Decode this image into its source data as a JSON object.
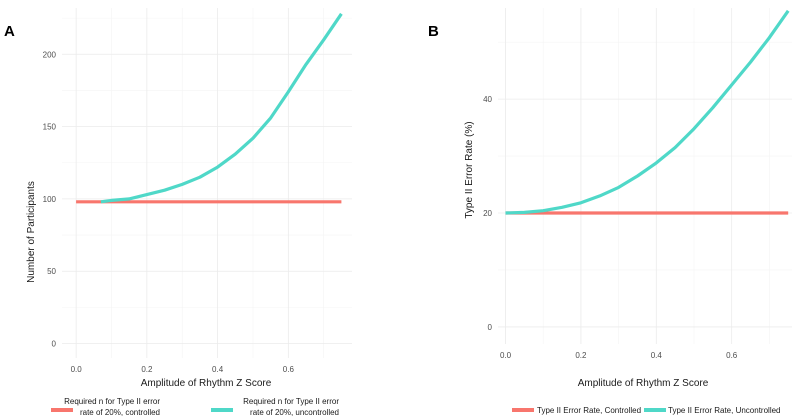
{
  "chart_data": [
    {
      "panel": "A",
      "type": "line",
      "xlabel": "Amplitude of Rhythm  Z Score",
      "ylabel": "Number of Participants",
      "xlim": [
        -0.04,
        0.78
      ],
      "ylim": [
        -10,
        232
      ],
      "x_ticks": [
        0.0,
        0.2,
        0.4,
        0.6
      ],
      "x_tick_labels": [
        "0.0",
        "0.2",
        "0.4",
        "0.6"
      ],
      "y_ticks": [
        0,
        50,
        100,
        150,
        200
      ],
      "y_tick_labels": [
        "0",
        "50",
        "100",
        "150",
        "200"
      ],
      "series": [
        {
          "name": "controlled",
          "color": "#F8766D",
          "x": [
            0.0,
            0.75
          ],
          "y": [
            98,
            98
          ]
        },
        {
          "name": "uncontrolled",
          "color": "#4FD8C8",
          "x": [
            0.07,
            0.1,
            0.15,
            0.2,
            0.25,
            0.3,
            0.35,
            0.4,
            0.45,
            0.5,
            0.55,
            0.6,
            0.65,
            0.7,
            0.75
          ],
          "y": [
            98,
            99,
            100,
            103,
            106,
            110,
            115,
            122,
            131,
            142,
            156,
            174,
            193,
            210,
            228
          ]
        }
      ],
      "legend": [
        {
          "label_line1": "Required n for Type II error",
          "label_line2": "rate of 20%, controlled",
          "color": "#F8766D"
        },
        {
          "label_line1": "Required n for Type II error",
          "label_line2": "rate of 20%, uncontrolled",
          "color": "#4FD8C8"
        }
      ]
    },
    {
      "panel": "B",
      "type": "line",
      "xlabel": "Amplitude of Rhythm  Z Score",
      "ylabel": "Type II Error Rate (%)",
      "xlim": [
        -0.02,
        0.76
      ],
      "ylim": [
        -3,
        56
      ],
      "x_ticks": [
        0.0,
        0.2,
        0.4,
        0.6
      ],
      "x_tick_labels": [
        "0.0",
        "0.2",
        "0.4",
        "0.6"
      ],
      "y_ticks": [
        0,
        20,
        40
      ],
      "y_tick_labels": [
        "0",
        "20",
        "40"
      ],
      "series": [
        {
          "name": "Type II Error Rate, Controlled",
          "color": "#F8766D",
          "x": [
            0.0,
            0.75
          ],
          "y": [
            20,
            20
          ]
        },
        {
          "name": "Type II Error Rate, Uncontrolled",
          "color": "#4FD8C8",
          "x": [
            0.0,
            0.05,
            0.1,
            0.15,
            0.2,
            0.25,
            0.3,
            0.35,
            0.4,
            0.45,
            0.5,
            0.55,
            0.6,
            0.65,
            0.7,
            0.75
          ],
          "y": [
            20,
            20.1,
            20.4,
            21,
            21.8,
            23,
            24.5,
            26.5,
            28.8,
            31.5,
            34.8,
            38.5,
            42.5,
            46.5,
            50.8,
            55.5
          ]
        }
      ],
      "legend": [
        {
          "label": "Type II Error Rate, Controlled",
          "color": "#F8766D"
        },
        {
          "label": "Type II Error Rate, Uncontrolled",
          "color": "#4FD8C8"
        }
      ]
    }
  ]
}
